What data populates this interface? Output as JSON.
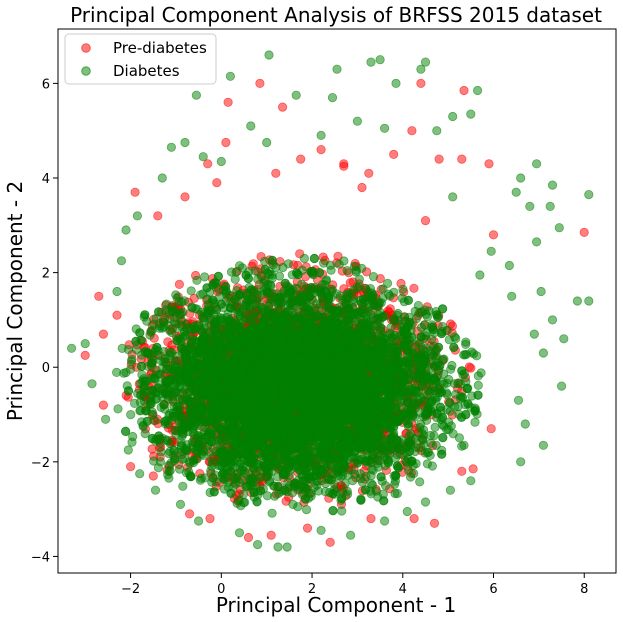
{
  "chart_data": {
    "type": "scatter",
    "title": "Principal Component Analysis of BRFSS 2015 dataset",
    "xlabel": "Principal Component - 1",
    "ylabel": "Principal Component - 2",
    "xlim": [
      -3.6,
      8.7
    ],
    "ylim": [
      -4.35,
      7.15
    ],
    "xticks": [
      -2,
      0,
      2,
      4,
      6,
      8
    ],
    "yticks": [
      -4,
      -2,
      0,
      2,
      4,
      6
    ],
    "grid": false,
    "legend_position": "top-left",
    "series": [
      {
        "name": "Pre-diabetes",
        "color": "#ff0000",
        "cloud": {
          "center": [
            1.6,
            -0.3
          ],
          "spread": [
            1.55,
            1.05
          ],
          "extent": [
            [
              -2.7,
              6.8
            ],
            [
              -3.8,
              4.6
            ]
          ]
        },
        "points": [
          [
            -1.9,
            3.7
          ],
          [
            -0.3,
            4.3
          ],
          [
            0.15,
            5.6
          ],
          [
            0.1,
            4.75
          ],
          [
            0.85,
            6.0
          ],
          [
            1.35,
            5.5
          ],
          [
            1.75,
            4.4
          ],
          [
            2.2,
            4.6
          ],
          [
            2.7,
            4.3
          ],
          [
            3.25,
            4.1
          ],
          [
            3.8,
            4.5
          ],
          [
            4.2,
            5.0
          ],
          [
            4.4,
            6.0
          ],
          [
            4.8,
            4.4
          ],
          [
            5.3,
            4.4
          ],
          [
            5.35,
            5.85
          ],
          [
            5.9,
            4.3
          ],
          [
            4.5,
            3.1
          ],
          [
            8.0,
            2.85
          ],
          [
            -2.7,
            1.5
          ],
          [
            -2.3,
            1.1
          ],
          [
            -2.6,
            0.7
          ],
          [
            -3.0,
            0.25
          ],
          [
            -2.6,
            -0.8
          ],
          [
            -2.0,
            -2.1
          ],
          [
            -1.5,
            -2.3
          ],
          [
            -0.7,
            -3.1
          ],
          [
            -0.25,
            -3.2
          ],
          [
            0.6,
            -3.6
          ],
          [
            1.1,
            -3.55
          ],
          [
            1.9,
            -3.4
          ],
          [
            2.4,
            -3.7
          ],
          [
            2.65,
            -2.9
          ],
          [
            3.3,
            -3.2
          ],
          [
            4.25,
            -3.2
          ],
          [
            4.7,
            -3.3
          ],
          [
            5.3,
            -2.2
          ],
          [
            5.55,
            -2.15
          ],
          [
            5.95,
            -1.3
          ],
          [
            6.0,
            2.8
          ],
          [
            2.7,
            4.25
          ],
          [
            3.1,
            3.8
          ],
          [
            -0.8,
            3.6
          ],
          [
            -1.4,
            3.2
          ],
          [
            -0.1,
            3.9
          ],
          [
            1.2,
            4.1
          ]
        ]
      },
      {
        "name": "Diabetes",
        "color": "#008000",
        "cloud": {
          "center": [
            1.7,
            -0.4
          ],
          "spread": [
            1.6,
            1.05
          ],
          "extent": [
            [
              -3.2,
              8.1
            ],
            [
              -3.85,
              6.7
            ]
          ]
        },
        "points": [
          [
            1.05,
            6.6
          ],
          [
            3.5,
            6.5
          ],
          [
            3.3,
            6.45
          ],
          [
            4.5,
            6.45
          ],
          [
            4.4,
            6.3
          ],
          [
            2.55,
            6.3
          ],
          [
            3.85,
            6.0
          ],
          [
            0.2,
            6.15
          ],
          [
            -0.55,
            5.75
          ],
          [
            1.65,
            5.75
          ],
          [
            2.45,
            5.7
          ],
          [
            5.65,
            5.85
          ],
          [
            5.5,
            5.35
          ],
          [
            5.1,
            5.3
          ],
          [
            0.65,
            5.1
          ],
          [
            3.0,
            5.2
          ],
          [
            3.6,
            5.05
          ],
          [
            2.2,
            4.9
          ],
          [
            4.75,
            5.0
          ],
          [
            1.0,
            4.75
          ],
          [
            6.95,
            4.3
          ],
          [
            6.6,
            4.0
          ],
          [
            7.3,
            3.85
          ],
          [
            8.1,
            3.65
          ],
          [
            6.5,
            3.7
          ],
          [
            7.25,
            3.4
          ],
          [
            5.1,
            3.6
          ],
          [
            -1.1,
            4.65
          ],
          [
            -0.8,
            4.75
          ],
          [
            -0.4,
            4.45
          ],
          [
            -1.85,
            3.2
          ],
          [
            -2.1,
            2.9
          ],
          [
            -2.2,
            2.25
          ],
          [
            -2.3,
            1.6
          ],
          [
            -3.0,
            0.5
          ],
          [
            -3.3,
            0.4
          ],
          [
            -2.85,
            -0.35
          ],
          [
            -2.55,
            -1.1
          ],
          [
            -2.05,
            -1.75
          ],
          [
            -1.8,
            -2.25
          ],
          [
            -1.45,
            -2.6
          ],
          [
            -0.9,
            -2.9
          ],
          [
            -0.5,
            -3.25
          ],
          [
            0.4,
            -3.5
          ],
          [
            0.8,
            -3.75
          ],
          [
            1.25,
            -3.8
          ],
          [
            1.45,
            -3.8
          ],
          [
            2.2,
            -3.45
          ],
          [
            2.85,
            -3.55
          ],
          [
            3.6,
            -3.25
          ],
          [
            4.1,
            -3.05
          ],
          [
            4.5,
            -2.85
          ],
          [
            5.05,
            -2.6
          ],
          [
            5.5,
            -2.4
          ],
          [
            6.6,
            -2.0
          ],
          [
            7.1,
            -1.65
          ],
          [
            7.5,
            -0.4
          ],
          [
            7.1,
            0.3
          ],
          [
            7.55,
            0.6
          ],
          [
            7.85,
            1.4
          ],
          [
            8.1,
            1.4
          ],
          [
            7.05,
            1.6
          ],
          [
            6.4,
            1.5
          ],
          [
            6.35,
            2.15
          ],
          [
            6.95,
            2.65
          ],
          [
            6.8,
            3.4
          ],
          [
            7.45,
            2.95
          ],
          [
            5.7,
            1.95
          ],
          [
            5.95,
            2.45
          ],
          [
            5.6,
            -0.9
          ],
          [
            5.35,
            -1.65
          ],
          [
            6.7,
            -1.2
          ],
          [
            6.55,
            -0.7
          ],
          [
            6.9,
            0.7
          ],
          [
            7.3,
            1.0
          ],
          [
            -1.3,
            4.0
          ],
          [
            0.0,
            4.35
          ]
        ]
      }
    ]
  }
}
